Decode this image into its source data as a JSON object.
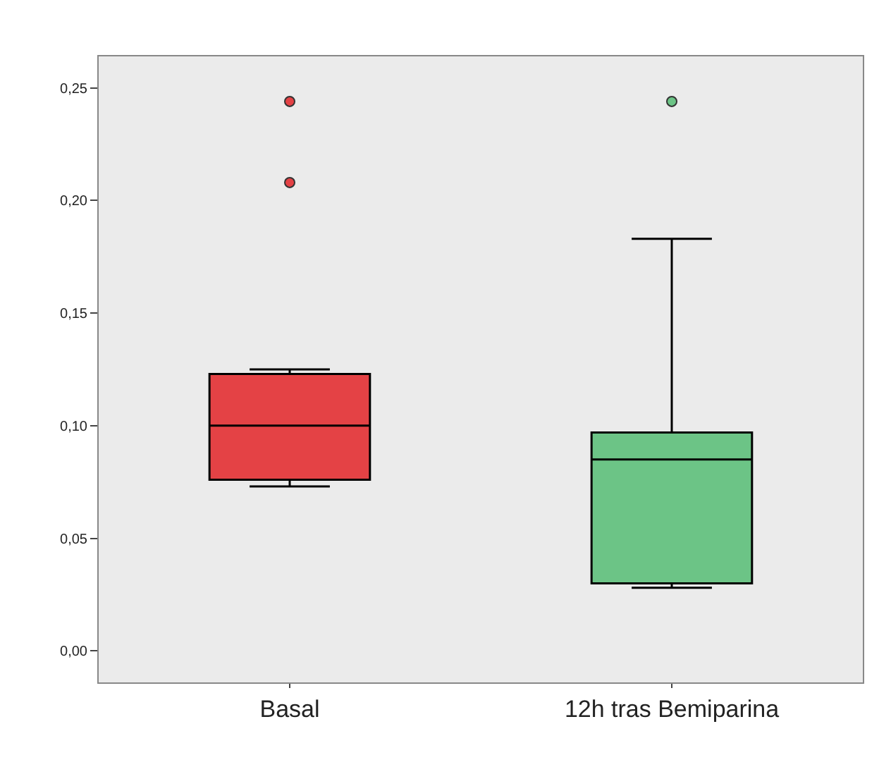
{
  "chart_data": {
    "type": "box",
    "categories": [
      "Basal",
      "12h tras Bemiparina"
    ],
    "colors": [
      "#e44245",
      "#6cc486"
    ],
    "boxes": [
      {
        "low": 0.073,
        "q1": 0.076,
        "median": 0.1,
        "q3": 0.123,
        "high": 0.125,
        "outliers": [
          0.244,
          0.208
        ]
      },
      {
        "low": 0.028,
        "q1": 0.03,
        "median": 0.085,
        "q3": 0.097,
        "high": 0.183,
        "outliers": [
          0.244
        ]
      }
    ],
    "ylim": [
      -0.014,
      0.264
    ],
    "yticks": [
      {
        "value": 0,
        "label": "0,00"
      },
      {
        "value": 0.05,
        "label": "0,05"
      },
      {
        "value": 0.1,
        "label": "0,10"
      },
      {
        "value": 0.15,
        "label": "0,15"
      },
      {
        "value": 0.2,
        "label": "0,20"
      },
      {
        "value": 0.25,
        "label": "0,25"
      }
    ],
    "grid": false
  }
}
